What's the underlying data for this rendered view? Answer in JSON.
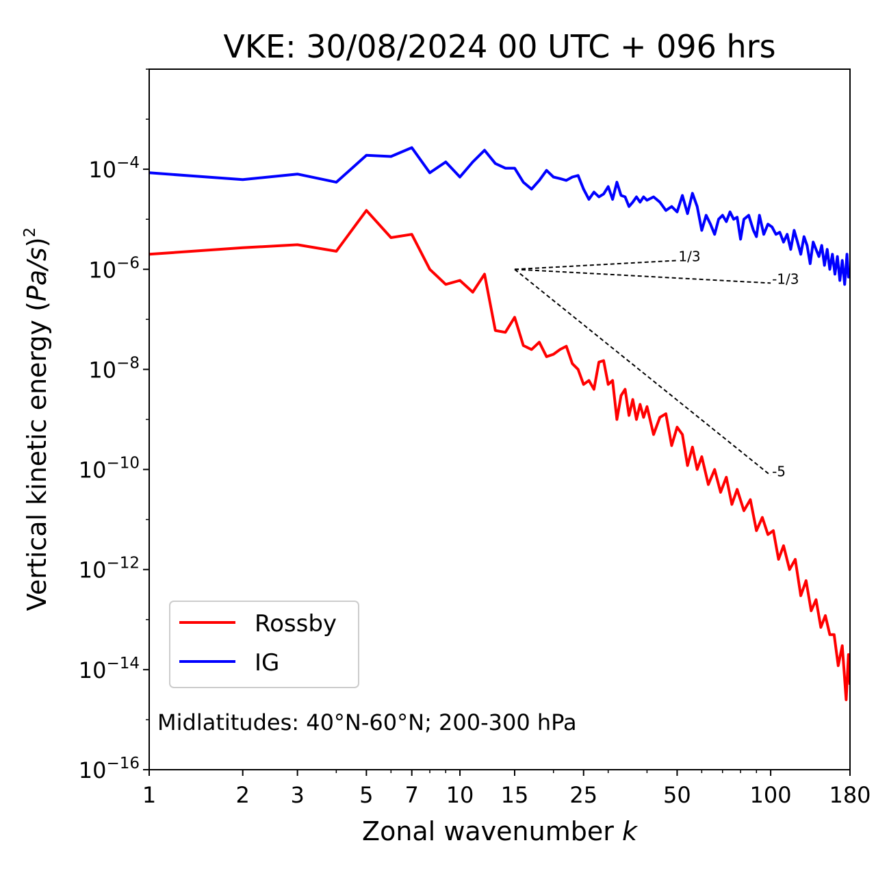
{
  "chart_data": {
    "type": "line",
    "title": "VKE: 30/08/2024 00 UTC + 096 hrs",
    "xlabel": "Zonal wavenumber ",
    "xlabel_var": "k",
    "ylabel_pre": "Vertical kinetic energy (",
    "ylabel_var": "Pa/s",
    "ylabel_post": ")",
    "ylabel_exp": "2",
    "x_scale": "log",
    "y_scale": "log",
    "xlim": [
      1,
      180
    ],
    "ylim": [
      1e-16,
      0.01
    ],
    "x_ticks": [
      1,
      2,
      3,
      5,
      7,
      10,
      15,
      25,
      50,
      100,
      180
    ],
    "x_tick_labels": [
      "1",
      "2",
      "3",
      "5",
      "7",
      "10",
      "15",
      "25",
      "50",
      "100",
      "180"
    ],
    "y_ticks_exp": [
      -16,
      -14,
      -12,
      -10,
      -8,
      -6,
      -4
    ],
    "y_tick_base": "10",
    "y_tick_exps": [
      "−16",
      "−14",
      "−12",
      "−10",
      "−8",
      "−6",
      "−4"
    ],
    "grid": false,
    "legend_position": "lower-left",
    "annotation": "Midlatitudes: 40°N-60°N; 200-300 hPa",
    "series": [
      {
        "name": "Rossby",
        "color": "#ff0000",
        "points": [
          [
            1,
            2e-06
          ],
          [
            2,
            2.7e-06
          ],
          [
            3,
            3.1e-06
          ],
          [
            4,
            2.3e-06
          ],
          [
            5,
            1.5e-05
          ],
          [
            6,
            4.3e-06
          ],
          [
            7,
            5e-06
          ],
          [
            8,
            1e-06
          ],
          [
            9,
            5e-07
          ],
          [
            10,
            6e-07
          ],
          [
            11,
            3.5e-07
          ],
          [
            12,
            8e-07
          ],
          [
            13,
            6e-08
          ],
          [
            14,
            5.5e-08
          ],
          [
            15,
            1.1e-07
          ],
          [
            16,
            3e-08
          ],
          [
            17,
            2.5e-08
          ],
          [
            18,
            3.5e-08
          ],
          [
            19,
            1.8e-08
          ],
          [
            20,
            2e-08
          ],
          [
            21,
            2.5e-08
          ],
          [
            22,
            2.9e-08
          ],
          [
            23,
            1.3e-08
          ],
          [
            24,
            1e-08
          ],
          [
            25,
            5e-09
          ],
          [
            26,
            6e-09
          ],
          [
            27,
            4e-09
          ],
          [
            28,
            1.4e-08
          ],
          [
            29,
            1.5e-08
          ],
          [
            30,
            5e-09
          ],
          [
            31,
            6e-09
          ],
          [
            32,
            1e-09
          ],
          [
            33,
            3e-09
          ],
          [
            34,
            4e-09
          ],
          [
            35,
            1.2e-09
          ],
          [
            36,
            2.5e-09
          ],
          [
            37,
            1e-09
          ],
          [
            38,
            2e-09
          ],
          [
            39,
            1.1e-09
          ],
          [
            40,
            1.8e-09
          ],
          [
            42,
            5e-10
          ],
          [
            44,
            1.1e-09
          ],
          [
            46,
            1.3e-09
          ],
          [
            48,
            3e-10
          ],
          [
            50,
            7e-10
          ],
          [
            52,
            5e-10
          ],
          [
            54,
            1.2e-10
          ],
          [
            56,
            2.8e-10
          ],
          [
            58,
            1e-10
          ],
          [
            60,
            1.8e-10
          ],
          [
            63,
            5e-11
          ],
          [
            66,
            1e-10
          ],
          [
            69,
            3.5e-11
          ],
          [
            72,
            7e-11
          ],
          [
            75,
            2e-11
          ],
          [
            78,
            4e-11
          ],
          [
            82,
            1.5e-11
          ],
          [
            86,
            2.5e-11
          ],
          [
            90,
            6e-12
          ],
          [
            94,
            1.1e-11
          ],
          [
            98,
            5e-12
          ],
          [
            102,
            6e-12
          ],
          [
            106,
            1.6e-12
          ],
          [
            110,
            3e-12
          ],
          [
            115,
            1e-12
          ],
          [
            120,
            1.6e-12
          ],
          [
            125,
            3e-13
          ],
          [
            130,
            6e-13
          ],
          [
            135,
            1.5e-13
          ],
          [
            140,
            2.5e-13
          ],
          [
            145,
            7e-14
          ],
          [
            150,
            1.2e-13
          ],
          [
            155,
            5e-14
          ],
          [
            160,
            5e-14
          ],
          [
            165,
            1.2e-14
          ],
          [
            170,
            3e-14
          ],
          [
            175,
            2.5e-15
          ],
          [
            178,
            2e-14
          ],
          [
            180,
            5e-15
          ]
        ]
      },
      {
        "name": "IG",
        "color": "#0000ff",
        "points": [
          [
            1,
            8.5e-05
          ],
          [
            2,
            6.2e-05
          ],
          [
            3,
            8e-05
          ],
          [
            4,
            5.5e-05
          ],
          [
            5,
            0.00019
          ],
          [
            6,
            0.00018
          ],
          [
            7,
            0.00027
          ],
          [
            8,
            8.5e-05
          ],
          [
            9,
            0.00014
          ],
          [
            10,
            7e-05
          ],
          [
            11,
            0.00014
          ],
          [
            12,
            0.00024
          ],
          [
            13,
            0.00013
          ],
          [
            14,
            0.000105
          ],
          [
            15,
            0.000105
          ],
          [
            16,
            5.5e-05
          ],
          [
            17,
            4e-05
          ],
          [
            18,
            6e-05
          ],
          [
            19,
            9.5e-05
          ],
          [
            20,
            7e-05
          ],
          [
            21,
            6.5e-05
          ],
          [
            22,
            6e-05
          ],
          [
            23,
            7e-05
          ],
          [
            24,
            7.5e-05
          ],
          [
            25,
            4e-05
          ],
          [
            26,
            2.5e-05
          ],
          [
            27,
            3.5e-05
          ],
          [
            28,
            2.8e-05
          ],
          [
            29,
            3.2e-05
          ],
          [
            30,
            4.5e-05
          ],
          [
            31,
            2.5e-05
          ],
          [
            32,
            5.5e-05
          ],
          [
            33,
            3e-05
          ],
          [
            34,
            2.8e-05
          ],
          [
            35,
            1.8e-05
          ],
          [
            36,
            2.2e-05
          ],
          [
            37,
            2.8e-05
          ],
          [
            38,
            2.2e-05
          ],
          [
            39,
            2.8e-05
          ],
          [
            40,
            2.4e-05
          ],
          [
            42,
            2.8e-05
          ],
          [
            44,
            2.2e-05
          ],
          [
            46,
            1.5e-05
          ],
          [
            48,
            1.8e-05
          ],
          [
            50,
            1.4e-05
          ],
          [
            52,
            3e-05
          ],
          [
            54,
            1.3e-05
          ],
          [
            56,
            3.3e-05
          ],
          [
            58,
            1.8e-05
          ],
          [
            60,
            6e-06
          ],
          [
            62,
            1.2e-05
          ],
          [
            64,
            8e-06
          ],
          [
            66,
            5e-06
          ],
          [
            68,
            1e-05
          ],
          [
            70,
            1.2e-05
          ],
          [
            72,
            9e-06
          ],
          [
            74,
            1.4e-05
          ],
          [
            76,
            1e-05
          ],
          [
            78,
            1.1e-05
          ],
          [
            80,
            4e-06
          ],
          [
            82,
            1e-05
          ],
          [
            85,
            1.2e-05
          ],
          [
            88,
            6e-06
          ],
          [
            90,
            4.5e-06
          ],
          [
            92,
            1.2e-05
          ],
          [
            95,
            5e-06
          ],
          [
            98,
            8e-06
          ],
          [
            101,
            7e-06
          ],
          [
            104,
            5e-06
          ],
          [
            107,
            5.5e-06
          ],
          [
            110,
            3.5e-06
          ],
          [
            113,
            5e-06
          ],
          [
            116,
            2.5e-06
          ],
          [
            119,
            6e-06
          ],
          [
            122,
            3.5e-06
          ],
          [
            125,
            2e-06
          ],
          [
            128,
            4.5e-06
          ],
          [
            131,
            3e-06
          ],
          [
            134,
            1.3e-06
          ],
          [
            137,
            3.5e-06
          ],
          [
            140,
            2.5e-06
          ],
          [
            143,
            1.8e-06
          ],
          [
            146,
            3e-06
          ],
          [
            149,
            1.2e-06
          ],
          [
            152,
            2.5e-06
          ],
          [
            155,
            1e-06
          ],
          [
            158,
            2e-06
          ],
          [
            161,
            8e-07
          ],
          [
            164,
            1.8e-06
          ],
          [
            167,
            6e-07
          ],
          [
            170,
            1.5e-06
          ],
          [
            173,
            5e-07
          ],
          [
            176,
            2e-06
          ],
          [
            178,
            7e-07
          ],
          [
            180,
            1e-06
          ]
        ]
      }
    ],
    "reference_slopes": [
      {
        "label": "1/3",
        "from": [
          15,
          1e-06
        ],
        "to": [
          50,
          1.5e-06
        ]
      },
      {
        "label": "-1/3",
        "from": [
          15,
          1e-06
        ],
        "to": [
          100,
          5.3e-07
        ]
      },
      {
        "label": "-5",
        "from": [
          15,
          1e-06
        ],
        "to": [
          100,
          7.6e-11
        ]
      }
    ]
  }
}
